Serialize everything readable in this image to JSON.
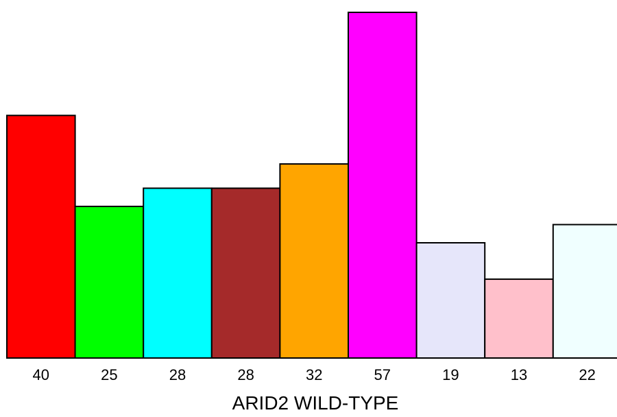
{
  "chart_data": {
    "type": "bar",
    "title": "",
    "xlabel": "ARID2 WILD-TYPE",
    "ylabel": "",
    "categories": [
      "40",
      "25",
      "28",
      "28",
      "32",
      "57",
      "19",
      "13",
      "22"
    ],
    "values": [
      40,
      25,
      28,
      28,
      32,
      57,
      19,
      13,
      22
    ],
    "colors": [
      "#ff0000",
      "#00ff00",
      "#00ffff",
      "#a52a2a",
      "#ffa500",
      "#ff00ff",
      "#e6e6fa",
      "#ffc0cb",
      "#f0ffff"
    ],
    "ylim": [
      0,
      57
    ],
    "grid": false,
    "legend": "none"
  }
}
